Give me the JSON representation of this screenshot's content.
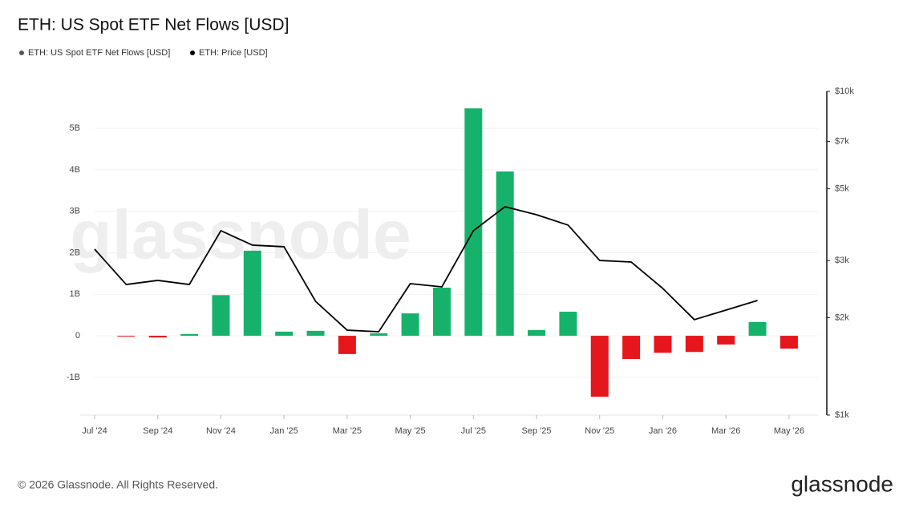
{
  "chart_data": {
    "type": "bar",
    "title": "ETH: US Spot ETF Net Flows [USD]",
    "watermark": "glassnode",
    "footer": "© 2026 Glassnode. All Rights Reserved.",
    "logo": "glassnode",
    "categories": [
      "Jul '24",
      null,
      "Sep '24",
      null,
      "Nov '24",
      null,
      "Jan '25",
      null,
      "Mar '25",
      null,
      "May '25",
      null,
      "Jul '25",
      null,
      "Sep '25",
      null,
      "Nov '25",
      null,
      "Jan '26",
      null,
      "Mar '26",
      null,
      "May '26"
    ],
    "series": [
      {
        "name": "ETH: US Spot ETF Net Flows [USD]",
        "type": "bar",
        "color": "#555555",
        "positive_color": "#16b26c",
        "negative_color": "#e5161c",
        "values": [
          null,
          -0.02,
          -0.04,
          0.04,
          0.98,
          2.05,
          0.1,
          0.12,
          -0.44,
          0.06,
          0.54,
          1.16,
          5.48,
          3.96,
          0.14,
          0.58,
          -1.47,
          -0.56,
          -0.41,
          -0.39,
          -0.21,
          0.33,
          -0.31
        ]
      },
      {
        "name": "ETH: Price [USD]",
        "type": "line",
        "axis": "y2",
        "color": "#000000",
        "values": [
          3254,
          2531,
          2606,
          2531,
          3711,
          3349,
          3311,
          2245,
          1829,
          1809,
          2547,
          2489,
          3711,
          4401,
          4157,
          3862,
          3003,
          2970,
          2461,
          1971,
          2110,
          2259,
          null
        ]
      }
    ],
    "ylim": [
      -1.91,
      5.89
    ],
    "yticks": [
      {
        "value": -1,
        "label": "-1B"
      },
      0,
      {
        "value": 1,
        "label": "1B"
      },
      {
        "value": 2,
        "label": "2B"
      },
      {
        "value": 3,
        "label": "3B"
      },
      {
        "value": 4,
        "label": "4B"
      },
      {
        "value": 5,
        "label": "5B"
      }
    ],
    "y2lim": [
      1000,
      10000
    ],
    "y2scale": "log",
    "y2ticks": [
      {
        "value": 1000,
        "label": "$1k"
      },
      {
        "value": 2000,
        "label": "$2k"
      },
      {
        "value": 3000,
        "label": "$3k"
      },
      {
        "value": 5000,
        "label": "$5k"
      },
      {
        "value": 7000,
        "label": "$7k"
      },
      {
        "value": 10000,
        "label": "$10k"
      }
    ],
    "grid": true
  }
}
